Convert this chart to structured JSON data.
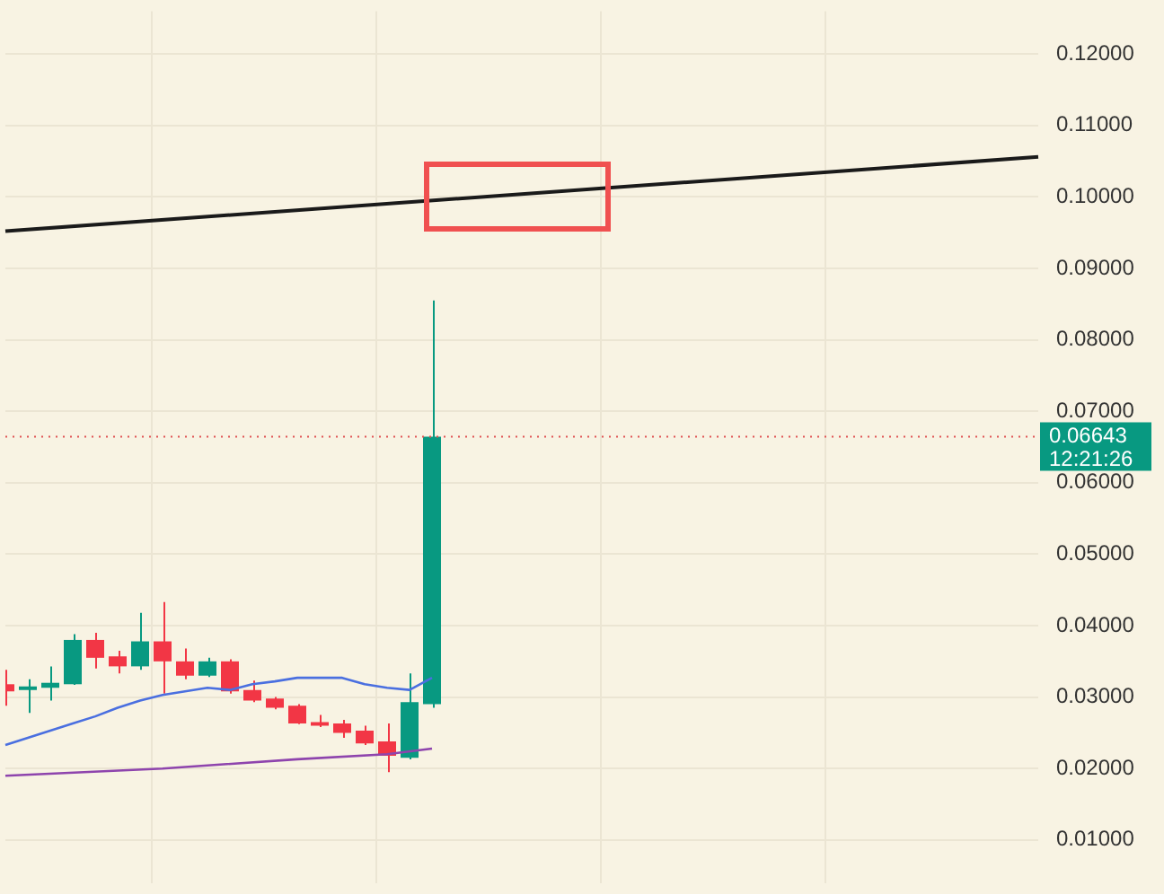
{
  "chart_data": {
    "type": "candlestick",
    "categories": [
      null,
      null,
      null,
      null,
      null,
      null,
      null,
      null,
      null,
      null,
      null,
      null,
      null,
      null,
      null,
      null,
      null,
      null,
      null,
      null,
      null,
      null,
      null,
      null,
      null,
      null,
      null,
      null,
      null,
      null,
      null,
      null,
      null,
      null,
      null,
      null,
      null,
      null,
      null,
      null,
      null,
      null,
      null,
      null,
      null,
      null,
      null
    ],
    "ohlc": [
      [
        0.0318,
        0.0338,
        0.0288,
        0.0308
      ],
      [
        0.031,
        0.0325,
        0.0278,
        0.0315
      ],
      [
        0.0313,
        0.0343,
        0.0295,
        0.032
      ],
      [
        0.0318,
        0.0388,
        0.0317,
        0.038
      ],
      [
        0.038,
        0.039,
        0.034,
        0.0355
      ],
      [
        0.0357,
        0.0365,
        0.0333,
        0.0343
      ],
      [
        0.0343,
        0.0418,
        0.0338,
        0.0378
      ],
      [
        0.0378,
        0.0433,
        0.0305,
        0.035
      ],
      [
        0.035,
        0.0368,
        0.0325,
        0.033
      ],
      [
        0.033,
        0.0355,
        0.0328,
        0.035
      ],
      [
        0.035,
        0.0353,
        0.0305,
        0.0308
      ],
      [
        0.031,
        0.0323,
        0.0293,
        0.0295
      ],
      [
        0.0298,
        0.03,
        0.0283,
        0.0285
      ],
      [
        0.0288,
        0.029,
        0.0262,
        0.0263
      ],
      [
        0.0265,
        0.0275,
        0.0258,
        0.026
      ],
      [
        0.0263,
        0.0268,
        0.0243,
        0.025
      ],
      [
        0.0253,
        0.026,
        0.0233,
        0.0235
      ],
      [
        0.0238,
        0.0263,
        0.0195,
        0.0218
      ],
      [
        0.0215,
        0.0333,
        0.0213,
        0.0293
      ],
      [
        0.029,
        0.0855,
        0.0285,
        0.06643
      ],
      null,
      null,
      null,
      null,
      null,
      null,
      null,
      null,
      null,
      null,
      null,
      null,
      null,
      null,
      null,
      null,
      null,
      null,
      null,
      null,
      null,
      null,
      null,
      null,
      null,
      null,
      null
    ],
    "colors": [
      "#f23645",
      "#089981",
      "#089981",
      "#089981",
      "#f23645",
      "#f23645",
      "#089981",
      "#f23645",
      "#f23645",
      "#089981",
      "#f23645",
      "#f23645",
      "#f23645",
      "#f23645",
      "#f23645",
      "#f23645",
      "#f23645",
      "#f23645",
      "#089981",
      "#089981",
      null,
      null,
      null,
      null,
      null,
      null,
      null,
      null,
      null,
      null,
      null,
      null,
      null,
      null,
      null,
      null,
      null,
      null,
      null,
      null,
      null,
      null,
      null,
      null,
      null,
      null,
      null
    ],
    "series": [
      {
        "type": "line",
        "color": "#4a6fe0",
        "values": [
          0.0233,
          0.0243,
          0.0253,
          0.0263,
          0.0273,
          0.0285,
          0.0295,
          0.0303,
          0.0308,
          0.0313,
          0.031,
          0.0318,
          0.0322,
          0.0327,
          0.0327,
          0.0327,
          0.0318,
          0.0313,
          0.031,
          0.0327,
          null,
          null,
          null,
          null,
          null,
          null,
          null,
          null,
          null,
          null,
          null,
          null,
          null,
          null,
          null,
          null,
          null,
          null,
          null,
          null,
          null,
          null,
          null,
          null,
          null,
          null,
          null
        ]
      },
      {
        "type": "line",
        "color": "#8e44ad",
        "values": [
          0.019,
          null,
          null,
          null,
          null,
          null,
          null,
          0.02,
          null,
          null,
          null,
          null,
          null,
          0.0213,
          null,
          null,
          null,
          0.022,
          null,
          0.0228,
          null,
          null,
          null,
          null,
          null,
          null,
          null,
          null,
          null,
          null,
          null,
          null,
          null,
          null,
          null,
          null,
          null,
          null,
          null,
          null,
          null,
          null,
          null,
          null,
          null,
          null,
          null
        ]
      },
      {
        "type": "line",
        "color": "#1a1a1a",
        "values": [
          0.0952,
          null,
          null,
          null,
          null,
          null,
          null,
          null,
          null,
          null,
          null,
          null,
          null,
          null,
          null,
          null,
          null,
          null,
          null,
          null,
          null,
          null,
          null,
          null,
          null,
          null,
          null,
          null,
          null,
          null,
          null,
          null,
          null,
          null,
          null,
          null,
          null,
          null,
          null,
          null,
          null,
          null,
          null,
          null,
          null,
          null,
          0.1056
        ]
      }
    ],
    "ylim": [
      0.004,
      0.126
    ],
    "yticks": [
      {
        "value": 0.01,
        "label": "0.01000"
      },
      {
        "value": 0.02,
        "label": "0.02000"
      },
      {
        "value": 0.03,
        "label": "0.03000"
      },
      {
        "value": 0.04,
        "label": "0.04000"
      },
      {
        "value": 0.05,
        "label": "0.05000"
      },
      {
        "value": 0.06,
        "label": "0.06000"
      },
      {
        "value": 0.07,
        "label": "0.07000"
      },
      {
        "value": 0.08,
        "label": "0.08000"
      },
      {
        "value": 0.09,
        "label": "0.09000"
      },
      {
        "value": 0.1,
        "label": "0.10000"
      },
      {
        "value": 0.11,
        "label": "0.11000"
      },
      {
        "value": 0.12,
        "label": "0.12000"
      }
    ],
    "ref_lines": [
      {
        "axis": "y",
        "value": 0.06643,
        "label": "0.06643",
        "color": "#e05555",
        "line_style": "dotted"
      }
    ],
    "annotations": [
      "12:21:26"
    ],
    "grid": true,
    "legend": false,
    "marker": "none"
  }
}
